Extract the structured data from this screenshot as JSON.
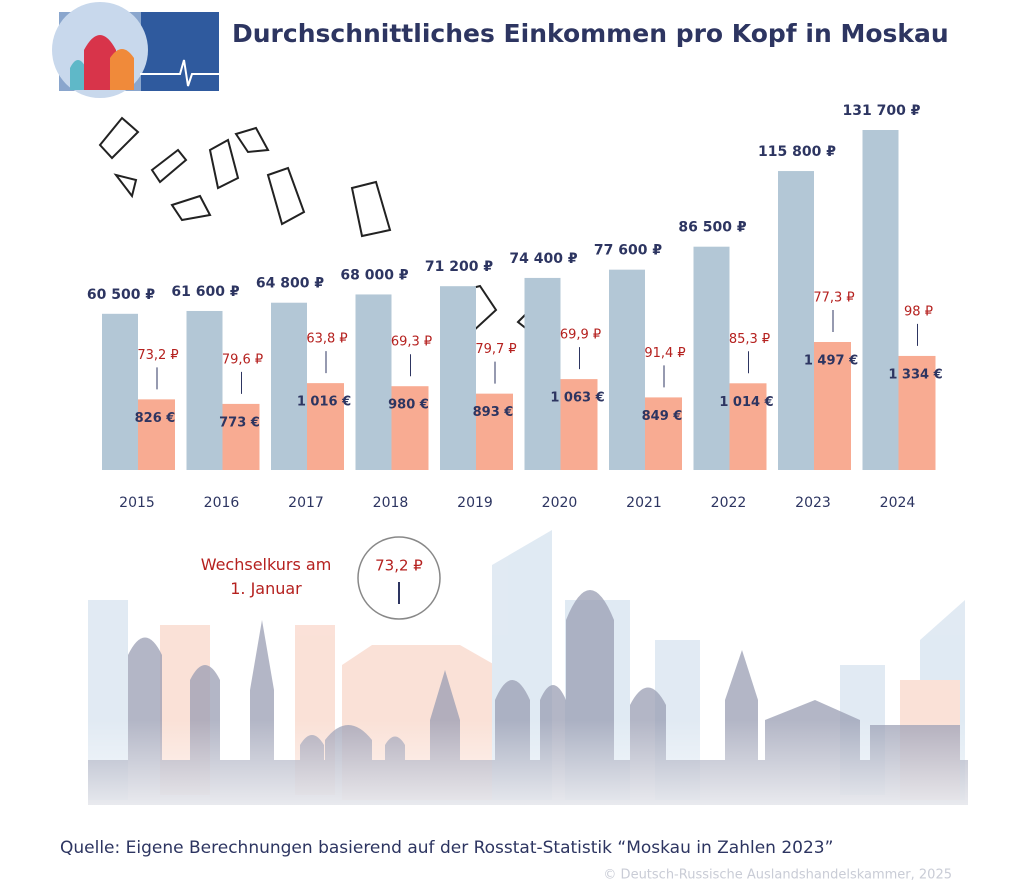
{
  "chart_data": {
    "type": "bar",
    "title": "Durchschnittliches Einkommen pro Kopf in Moskau",
    "categories": [
      "2015",
      "2016",
      "2017",
      "2018",
      "2019",
      "2020",
      "2021",
      "2022",
      "2023",
      "2024"
    ],
    "series": [
      {
        "color": "#b3c7d6",
        "values": [
          60500,
          61600,
          64800,
          68000,
          71200,
          74400,
          77600,
          86500,
          115800,
          131700
        ],
        "value_labels": [
          "60 500 ₽",
          "61 600 ₽",
          "64 800 ₽",
          "68 000 ₽",
          "71 200 ₽",
          "74 400 ₽",
          "77 600 ₽",
          "86 500 ₽",
          "115 800 ₽",
          "131 700 ₽"
        ]
      },
      {
        "color": "#f8ab92",
        "values": [
          826,
          773,
          1016,
          980,
          893,
          1063,
          849,
          1014,
          1497,
          1334
        ],
        "value_labels": [
          "826 €",
          "773 €",
          "1 016 €",
          "980 €",
          "893 €",
          "1 063 €",
          "849 €",
          "1 014 €",
          "1 497 €",
          "1 334 €"
        ]
      },
      {
        "name": "Wechselkurs am 1. Januar",
        "color": "#b5211f",
        "values": [
          73.2,
          79.6,
          63.8,
          69.3,
          79.7,
          69.9,
          91.4,
          85.3,
          77.3,
          98
        ],
        "value_labels": [
          "73,2 ₽",
          "79,6 ₽",
          "63,8 ₽",
          "69,3 ₽",
          "79,7 ₽",
          "69,9 ₽",
          "91,4 ₽",
          "85,3 ₽",
          "77,3 ₽",
          "98 ₽"
        ]
      }
    ],
    "source": "Quelle: Eigene Berechnungen basierend auf der Rosstat-Statistik “Moskau in Zahlen 2023”",
    "copyright": "© Deutsch-Russische Auslandshandelskammer, 2025"
  }
}
